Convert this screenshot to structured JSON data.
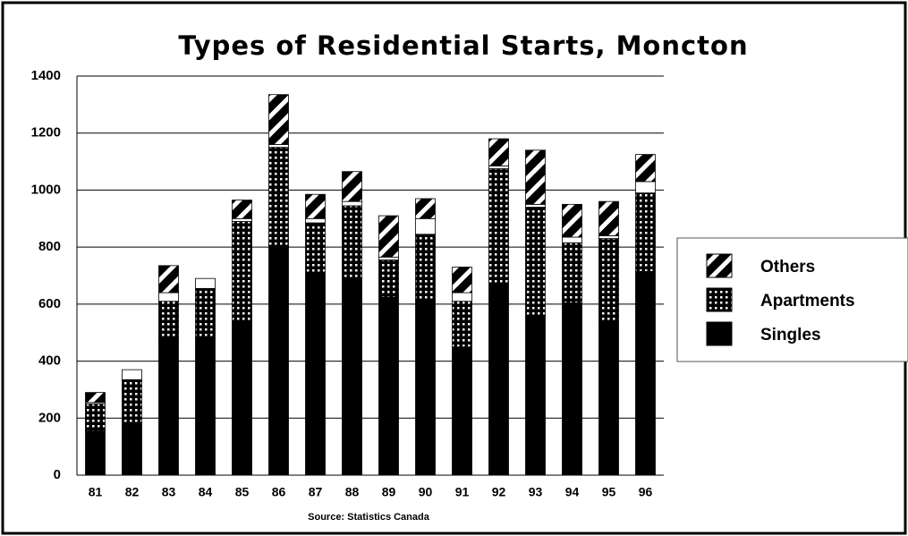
{
  "chart_data": {
    "type": "stacked_bar",
    "title": "Types of Residential Starts, Moncton",
    "source": "Source: Statistics Canada",
    "categories": [
      "81",
      "82",
      "83",
      "84",
      "85",
      "86",
      "87",
      "88",
      "89",
      "90",
      "91",
      "92",
      "93",
      "94",
      "95",
      "96"
    ],
    "series": [
      {
        "name": "Singles",
        "color": "#000000",
        "pattern": "solid",
        "values": [
          155,
          185,
          485,
          480,
          540,
          805,
          710,
          690,
          625,
          610,
          450,
          675,
          555,
          605,
          535,
          715
        ]
      },
      {
        "name": "Apartments",
        "color": "#000000",
        "pattern": "grid",
        "values": [
          95,
          150,
          125,
          175,
          350,
          345,
          175,
          255,
          130,
          235,
          160,
          400,
          385,
          210,
          295,
          275
        ]
      },
      {
        "name": null,
        "color": "#ffffff",
        "pattern": "solid",
        "values": [
          5,
          35,
          30,
          35,
          10,
          10,
          15,
          15,
          10,
          55,
          30,
          10,
          10,
          20,
          10,
          40
        ]
      },
      {
        "name": "Others",
        "color": "#000000",
        "pattern": "hatch",
        "values": [
          35,
          0,
          95,
          0,
          65,
          175,
          85,
          105,
          145,
          70,
          90,
          95,
          190,
          115,
          120,
          95
        ]
      }
    ],
    "ylim": [
      0,
      1400
    ],
    "yticks": [
      0,
      200,
      400,
      600,
      800,
      1000,
      1200,
      1400
    ],
    "grid": true,
    "legend": "right"
  }
}
